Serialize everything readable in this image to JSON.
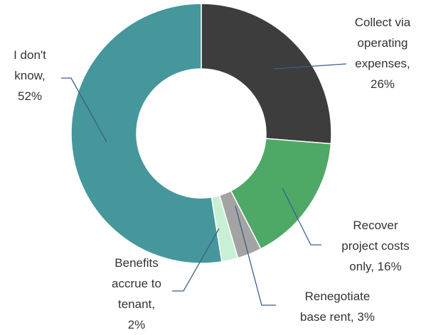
{
  "chart_data": {
    "type": "donut",
    "categories": [
      "Collect via operating expenses, 26%",
      "Recover project costs only, 16%",
      "Renegotiate base rent, 3%",
      "Benefits accrue to tenant, 2%",
      "I don't know, 52%"
    ],
    "values": [
      26,
      16,
      3,
      2,
      52
    ],
    "colors": [
      "#3d3d3d",
      "#4ea866",
      "#a3a3a3",
      "#c8f0d6",
      "#45979c"
    ]
  }
}
